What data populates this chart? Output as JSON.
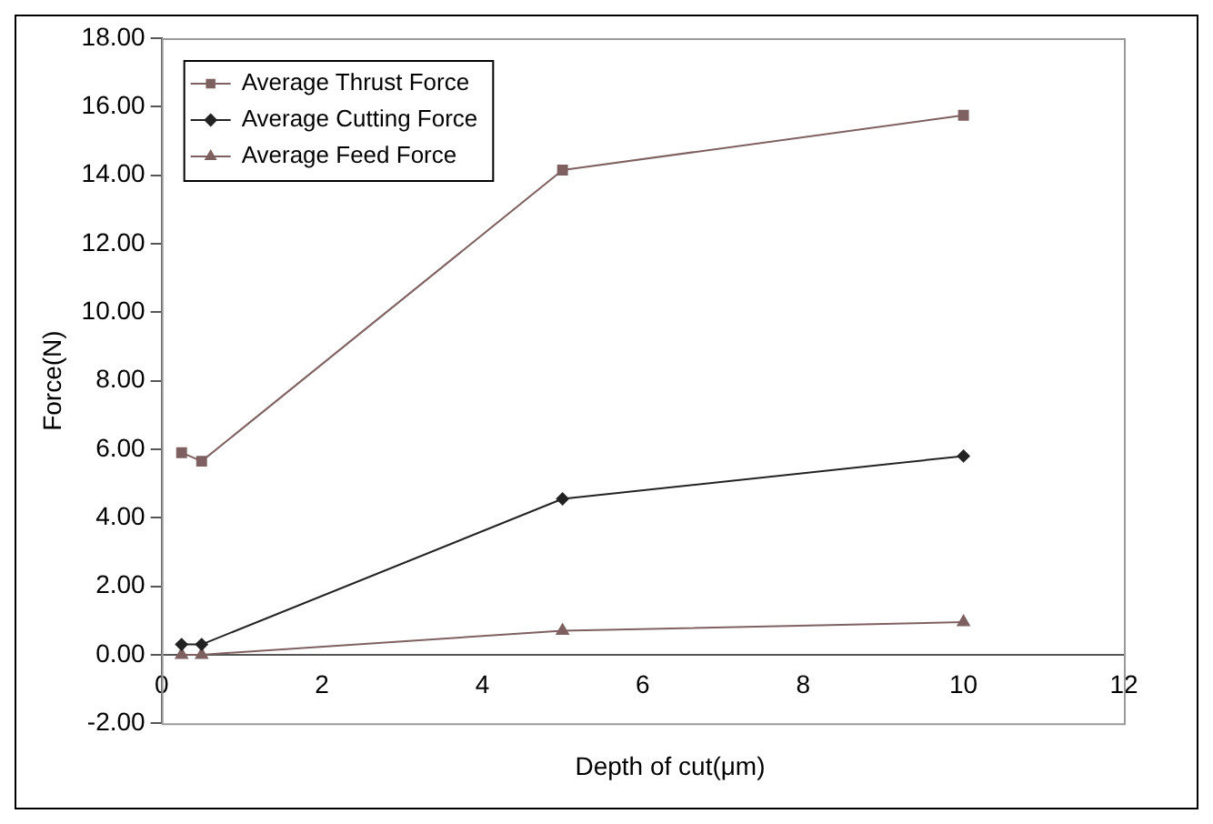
{
  "chart_data": {
    "type": "line",
    "xlabel": "Depth of cut(μm)",
    "ylabel": "Force(N)",
    "xlim": [
      0,
      12
    ],
    "xticks": [
      0,
      2,
      4,
      6,
      8,
      10,
      12
    ],
    "ylim": [
      -2,
      18
    ],
    "yticks": [
      {
        "value": -2,
        "label": "-2.00"
      },
      {
        "value": 0,
        "label": "0.00"
      },
      {
        "value": 2,
        "label": "2.00"
      },
      {
        "value": 4,
        "label": "4.00"
      },
      {
        "value": 6,
        "label": "6.00"
      },
      {
        "value": 8,
        "label": "8.00"
      },
      {
        "value": 10,
        "label": "10.00"
      },
      {
        "value": 12,
        "label": "12.00"
      },
      {
        "value": 14,
        "label": "14.00"
      },
      {
        "value": 16,
        "label": "16.00"
      },
      {
        "value": 18,
        "label": "18.00"
      }
    ],
    "x": [
      0.25,
      0.5,
      5,
      10
    ],
    "series": [
      {
        "name": "Average Thrust Force",
        "color": "#7f6060",
        "marker": "square",
        "values": [
          5.9,
          5.65,
          14.15,
          15.75
        ]
      },
      {
        "name": "Average Cutting Force",
        "color": "#222222",
        "marker": "diamond",
        "values": [
          0.3,
          0.3,
          4.55,
          5.8
        ]
      },
      {
        "name": "Average Feed Force",
        "color": "#7f6060",
        "marker": "triangle",
        "values": [
          0,
          0,
          0.7,
          0.95
        ]
      }
    ],
    "grid": false,
    "legend": "top left",
    "line_style": "solid"
  }
}
